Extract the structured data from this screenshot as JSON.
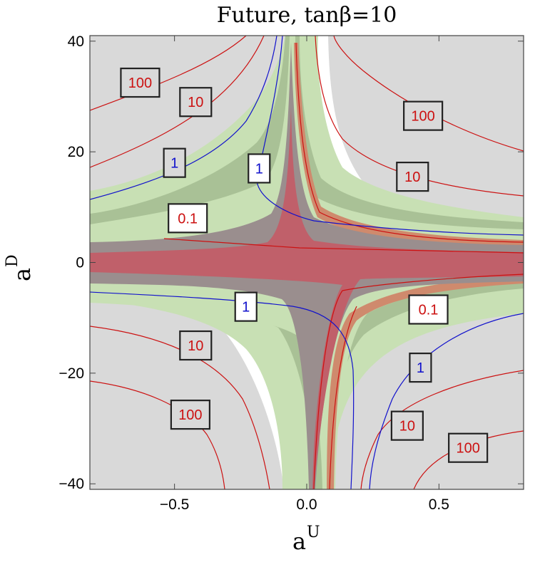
{
  "chart_data": {
    "type": "contour",
    "title": "Future, tanβ=10",
    "xlabel_base": "a",
    "xlabel_sup": "U",
    "ylabel_base": "a",
    "ylabel_sup": "D",
    "xlim": [
      -0.82,
      0.82
    ],
    "ylim": [
      -41,
      41
    ],
    "x_ticks": [
      {
        "value": -0.5,
        "label": "−0.5"
      },
      {
        "value": 0.0,
        "label": "0.0"
      },
      {
        "value": 0.5,
        "label": "0.5"
      }
    ],
    "y_ticks": [
      {
        "value": 40,
        "label": "40"
      },
      {
        "value": 20,
        "label": "20"
      },
      {
        "value": 0,
        "label": "0"
      },
      {
        "value": -20,
        "label": "−20"
      },
      {
        "value": -40,
        "label": "−40"
      }
    ],
    "colors": {
      "background": "#d9d9d9",
      "allowed_white": "#ffffff",
      "green_light": "#c8e0b4",
      "green_dark": "#a9c196",
      "gray_dark": "#9a8e8e",
      "red_band": "#c0606a",
      "orange_band": "#cf8a6d",
      "contour_red": "#cc1111",
      "contour_blue": "#1111cc"
    },
    "contour_labels": [
      {
        "text": "100",
        "color": "red",
        "x": -0.63,
        "y": 32.5,
        "highlight": false
      },
      {
        "text": "10",
        "color": "red",
        "x": -0.42,
        "y": 29.0,
        "highlight": false
      },
      {
        "text": "1",
        "color": "blue",
        "x": -0.5,
        "y": 18.0,
        "highlight": false
      },
      {
        "text": "1",
        "color": "blue",
        "x": -0.18,
        "y": 17.0,
        "highlight": true
      },
      {
        "text": "0.1",
        "color": "red",
        "x": -0.45,
        "y": 8.0,
        "highlight": true
      },
      {
        "text": "100",
        "color": "red",
        "x": 0.44,
        "y": 26.5,
        "highlight": false
      },
      {
        "text": "10",
        "color": "red",
        "x": 0.4,
        "y": 15.5,
        "highlight": false
      },
      {
        "text": "1",
        "color": "blue",
        "x": -0.23,
        "y": -8.0,
        "highlight": true
      },
      {
        "text": "0.1",
        "color": "red",
        "x": 0.46,
        "y": -8.5,
        "highlight": true
      },
      {
        "text": "10",
        "color": "red",
        "x": -0.42,
        "y": -15.0,
        "highlight": false
      },
      {
        "text": "1",
        "color": "blue",
        "x": 0.43,
        "y": -19.0,
        "highlight": false
      },
      {
        "text": "100",
        "color": "red",
        "x": -0.44,
        "y": -27.5,
        "highlight": false
      },
      {
        "text": "10",
        "color": "red",
        "x": 0.38,
        "y": -29.5,
        "highlight": false
      },
      {
        "text": "100",
        "color": "red",
        "x": 0.61,
        "y": -33.5,
        "highlight": false
      }
    ]
  }
}
